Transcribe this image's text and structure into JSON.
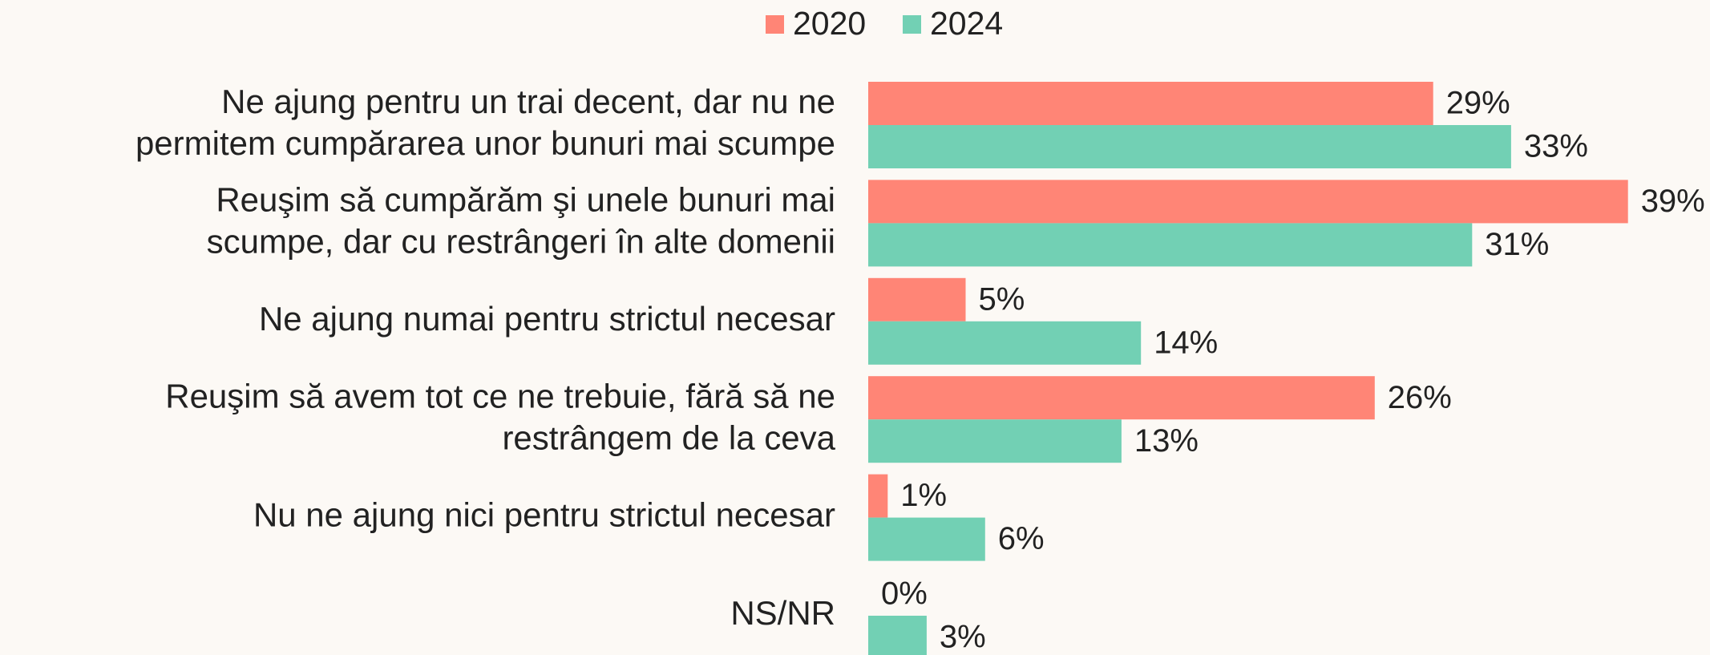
{
  "chart_data": {
    "type": "bar",
    "orientation": "horizontal",
    "categories": [
      [
        "Ne ajung pentru un trai decent, dar nu ne",
        "permitem cumpărarea unor bunuri mai scumpe"
      ],
      [
        "Reuşim să cumpărăm şi unele bunuri mai",
        "scumpe, dar cu restrângeri în alte domenii"
      ],
      [
        "Ne ajung numai pentru strictul necesar"
      ],
      [
        "Reuşim să avem tot ce ne trebuie, fără să ne",
        "restrângem de la ceva"
      ],
      [
        "Nu ne ajung nici pentru strictul necesar"
      ],
      [
        "NS/NR"
      ]
    ],
    "series": [
      {
        "name": "2020",
        "color": "#ff8576",
        "values": [
          29,
          39,
          5,
          26,
          1,
          0
        ],
        "value_labels": [
          "29%",
          "39%",
          "5%",
          "26%",
          "1%",
          "0%"
        ]
      },
      {
        "name": "2024",
        "color": "#72d0b4",
        "values": [
          33,
          31,
          14,
          13,
          6,
          3
        ],
        "value_labels": [
          "33%",
          "31%",
          "14%",
          "13%",
          "6%",
          "3%"
        ]
      }
    ],
    "legend": "top"
  }
}
